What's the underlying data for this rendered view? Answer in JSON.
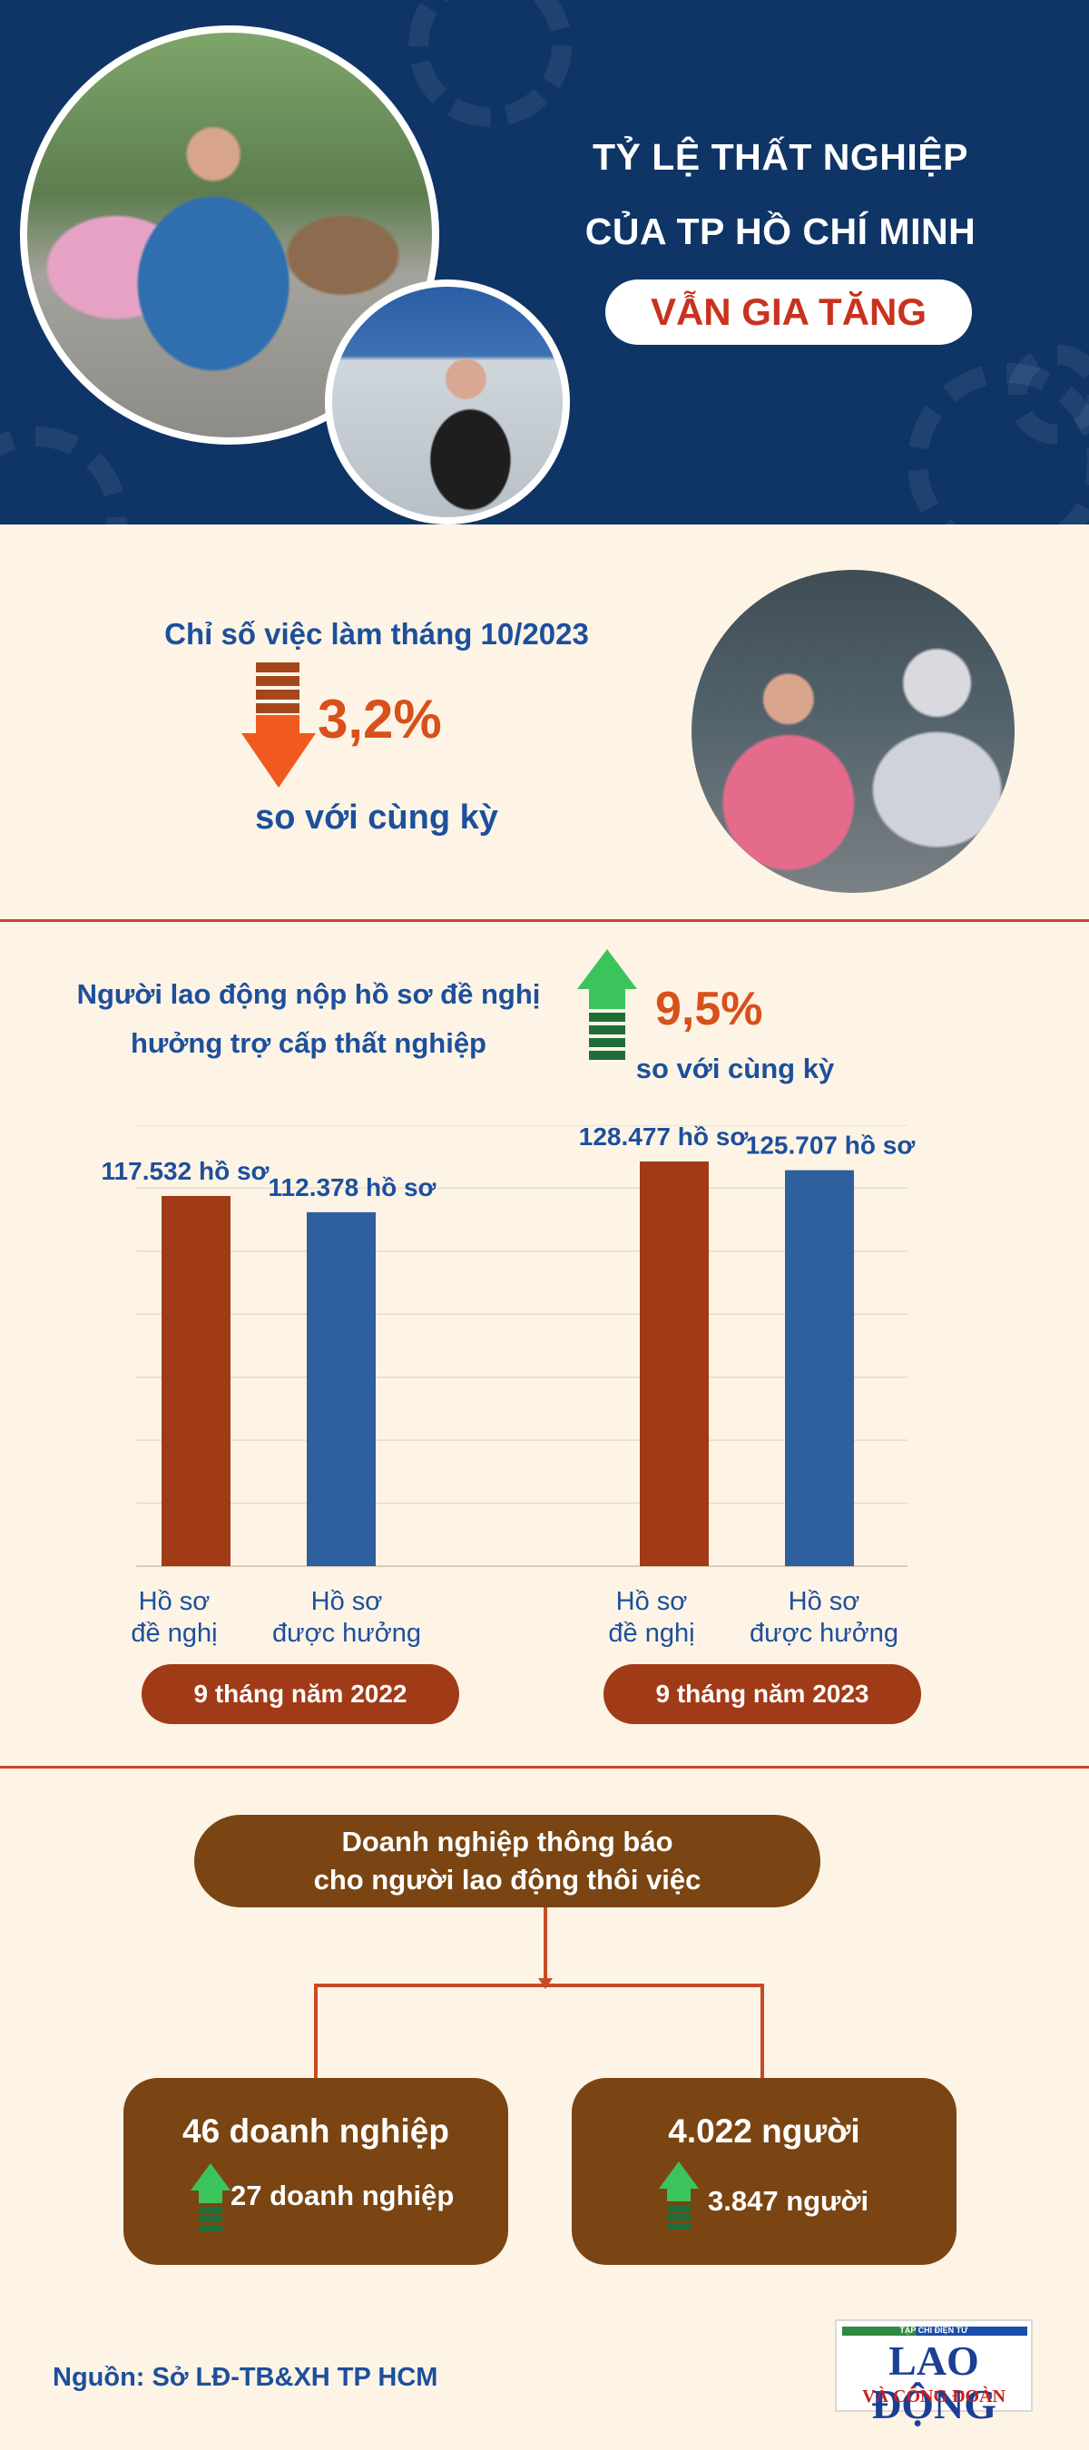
{
  "header": {
    "title_line1": "TỶ LỆ THẤT NGHIỆP",
    "title_line2": "CỦA TP HỒ CHÍ MINH",
    "highlight": "VẪN GIA TĂNG"
  },
  "jobs_index": {
    "title": "Chỉ số việc làm tháng 10/2023",
    "direction": "down",
    "change": "3,2%",
    "comparison": "so với cùng kỳ"
  },
  "claims": {
    "title_line1": "Người lao động nộp hồ sơ đề nghị",
    "title_line2": "hưởng trợ cấp thất nghiệp",
    "direction": "up",
    "change": "9,5%",
    "comparison": "so với cùng kỳ"
  },
  "chart_data": {
    "type": "bar",
    "categories": [
      "9 tháng năm 2022",
      "9 tháng năm 2023"
    ],
    "series": [
      {
        "name": "Hồ sơ đề nghị",
        "values": [
          117532,
          128477
        ],
        "labels": [
          "117.532 hồ sơ",
          "128.477 hồ sơ"
        ],
        "color": "#a13b17"
      },
      {
        "name": "Hồ sơ được hưởng",
        "values": [
          112378,
          125707
        ],
        "labels": [
          "112.378 hồ sơ",
          "125.707 hồ sơ"
        ],
        "color": "#2e5f9e"
      }
    ],
    "bar_labels": [
      [
        "Hồ sơ",
        "đề nghị"
      ],
      [
        "Hồ sơ",
        "được hưởng"
      ],
      [
        "Hồ sơ",
        "đề nghị"
      ],
      [
        "Hồ sơ",
        "được hưởng"
      ]
    ],
    "group_labels": [
      "9 tháng năm 2022",
      "9 tháng năm 2023"
    ],
    "ylim": [
      0,
      140000
    ],
    "grid": true,
    "legend": "none"
  },
  "layoffs": {
    "title_line1": "Doanh nghiệp thông báo",
    "title_line2": "cho người lao động thôi việc",
    "businesses": {
      "value": "46 doanh nghiệp",
      "previous": "27 doanh nghiệp",
      "direction": "up"
    },
    "workers": {
      "value": "4.022 người",
      "previous": "3.847 người",
      "direction": "up"
    }
  },
  "footer": {
    "source": "Nguồn: Sở LĐ-TB&XH TP HCM",
    "logo_top": "TẠP CHÍ ĐIỆN TỬ",
    "logo_main": "LAO ĐỘNG",
    "logo_sub": "VÀ CÔNG ĐOÀN"
  },
  "colors": {
    "header_bg": "#0f3466",
    "page_bg": "#fdf4e6",
    "accent_red": "#d8501a",
    "text_blue": "#1d4f9c",
    "brown": "#7a4512",
    "up_green": "#3cc45c"
  }
}
